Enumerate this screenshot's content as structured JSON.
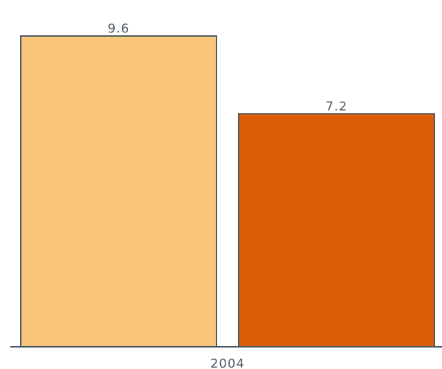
{
  "chart_data": {
    "type": "bar",
    "categories": [
      "2004"
    ],
    "series": [
      {
        "values": [
          9.6
        ],
        "color": "#f9c67a"
      },
      {
        "values": [
          7.2
        ],
        "color": "#dd5c08"
      }
    ],
    "data_labels": [
      "9.6",
      "7.2"
    ],
    "ylim": [
      0,
      9.6
    ],
    "grid": false,
    "legend": "none",
    "title": "",
    "xlabel": "",
    "ylabel": ""
  }
}
